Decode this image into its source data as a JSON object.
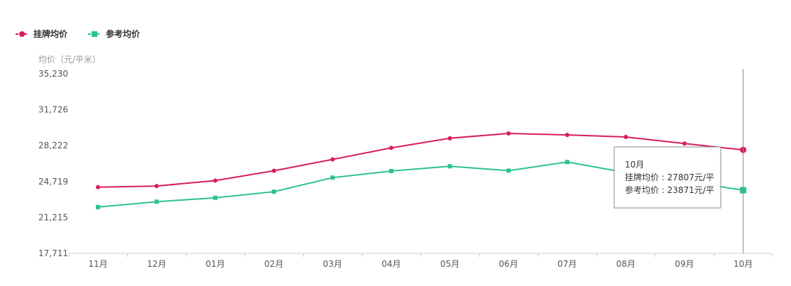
{
  "colors": {
    "series1": "#d81e5b",
    "series2": "#2ec28e"
  },
  "chart_data": {
    "type": "line",
    "ylabel": "均价（元/平米）",
    "categories": [
      "11月",
      "12月",
      "01月",
      "02月",
      "03月",
      "04月",
      "05月",
      "06月",
      "07月",
      "08月",
      "09月",
      "10月"
    ],
    "y_ticks": [
      "35,230",
      "31,726",
      "28,222",
      "24,719",
      "21,215",
      "17,711"
    ],
    "ylim": [
      17711,
      35230
    ],
    "series": [
      {
        "name": "挂牌均价",
        "marker": "circle",
        "values": [
          24165,
          24280,
          24810,
          25770,
          26880,
          28000,
          28940,
          29410,
          29270,
          29070,
          28430,
          27807
        ]
      },
      {
        "name": "参考均价",
        "marker": "square",
        "values": [
          22230,
          22750,
          23130,
          23730,
          25100,
          25740,
          26210,
          25780,
          26620,
          25600,
          24760,
          23871
        ]
      }
    ],
    "tooltip": {
      "title": "10月",
      "lines": [
        "挂牌均价 : 27807元/平",
        "参考均价 : 23871元/平"
      ]
    }
  }
}
